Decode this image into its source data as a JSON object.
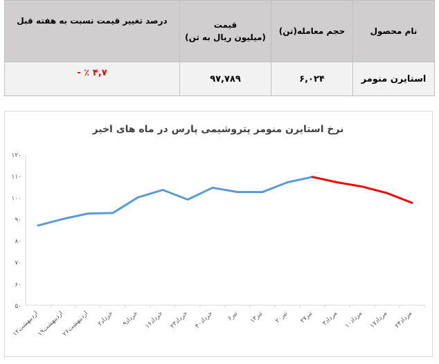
{
  "table": {
    "headers": {
      "product": "نام محصول",
      "volume": "حجم معامله(تن)",
      "price_line1": "قیمت",
      "price_line2": "(میلیون ریال به تن)",
      "change": "درصد تغییر قیمت نسبت به هفته قبل"
    },
    "row": {
      "product": "استایرن منومر",
      "volume": "۶,۰۲۴",
      "price": "۹۷,۷۸۹",
      "change": "۴,۷ ٪ -"
    },
    "colors": {
      "header_bg": "#d0cece",
      "row_bg": "#f2f2f2",
      "negative": "#ff0000"
    }
  },
  "chart_data": {
    "type": "line",
    "title": "نرخ استایرن منومر پتروشیمی پارس در ماه های اخیر",
    "categories": [
      "۱۲اردیبهشت",
      "۱۹اردیبهشت",
      "۲۶اردیبهشت",
      "۲خرداد",
      "۹خرداد",
      "۱۶خرداد",
      "۲۳خرداد",
      "۳۰خرداد",
      "۶تیر",
      "۱۳تیر",
      "۲۰تیر",
      "۲۷تیر",
      "۳مرداد",
      "۱۰مرداد",
      "۱۷مرداد",
      "۲۴مرداد"
    ],
    "values": [
      87,
      90,
      92.5,
      92.8,
      100,
      103.5,
      99,
      104.5,
      102.5,
      102.5,
      107,
      109.5,
      107,
      105,
      102,
      97.5
    ],
    "segments": [
      {
        "from": 0,
        "to": 11,
        "color": "#5b9bd5"
      },
      {
        "from": 11,
        "to": 15,
        "color": "#ff0000"
      }
    ],
    "yticks": [
      "۵۰",
      "۶۰",
      "۷۰",
      "۸۰",
      "۹۰",
      "۱۰۰",
      "۱۱۰",
      "۱۲۰"
    ],
    "ylim": [
      50,
      120
    ],
    "ystep": 10,
    "grid": false
  }
}
